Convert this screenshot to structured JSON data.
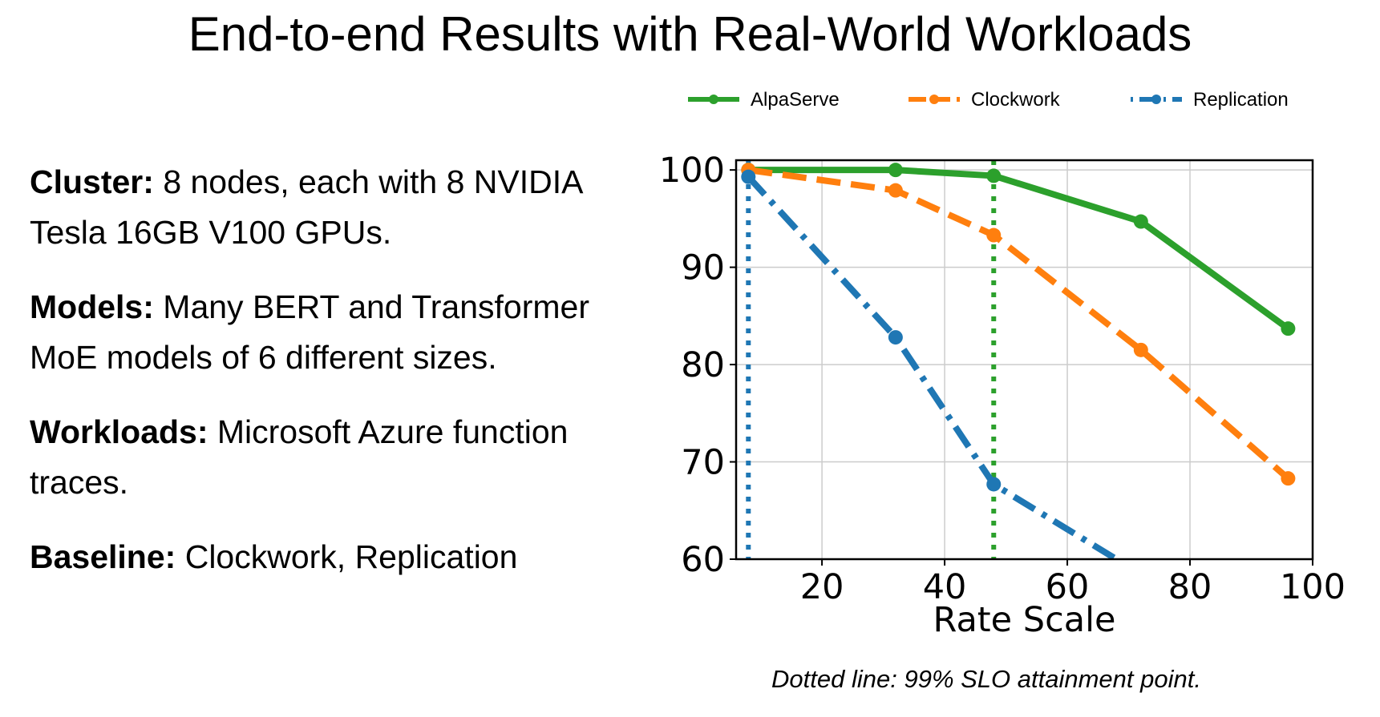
{
  "slide": {
    "title": "End-to-end Results with Real-World Workloads",
    "caption": "Dotted line: 99% SLO attainment point.",
    "bullets": [
      {
        "label": "Cluster:",
        "text": " 8 nodes, each with 8 NVIDIA Tesla 16GB V100 GPUs."
      },
      {
        "label": "Models:",
        "text": " Many BERT and Transformer MoE models of 6 different sizes."
      },
      {
        "label": "Workloads:",
        "text": " Microsoft Azure function traces."
      },
      {
        "label": "Baseline:",
        "text": " Clockwork, Replication"
      }
    ]
  },
  "chart_data": {
    "type": "line",
    "xlabel": "Rate Scale",
    "ylabel": "",
    "xlim": [
      6,
      100
    ],
    "ylim": [
      60,
      101
    ],
    "xticks": [
      20,
      40,
      60,
      80,
      100
    ],
    "yticks": [
      60,
      70,
      80,
      90,
      100
    ],
    "grid": true,
    "legend_position": "top",
    "series": [
      {
        "name": "AlpaServe",
        "color": "#2ca02c",
        "line_style": "solid",
        "x": [
          8,
          32,
          48,
          72,
          96
        ],
        "y": [
          100,
          100,
          99.4,
          94.7,
          83.7
        ]
      },
      {
        "name": "Clockwork",
        "color": "#ff7f0e",
        "line_style": "dashed",
        "x": [
          8,
          32,
          48,
          72,
          96
        ],
        "y": [
          100,
          97.9,
          93.3,
          81.5,
          68.3
        ]
      },
      {
        "name": "Replication",
        "color": "#1f77b4",
        "line_style": "dashdot",
        "x": [
          8,
          32,
          48,
          68
        ],
        "y": [
          99.3,
          82.8,
          67.7,
          60
        ],
        "markers": [
          true,
          true,
          true,
          false
        ]
      }
    ],
    "slo_lines": [
      {
        "series": "AlpaServe",
        "x": 48,
        "color": "#2ca02c"
      },
      {
        "series": "Replication",
        "x": 8,
        "color": "#1f77b4"
      }
    ]
  }
}
